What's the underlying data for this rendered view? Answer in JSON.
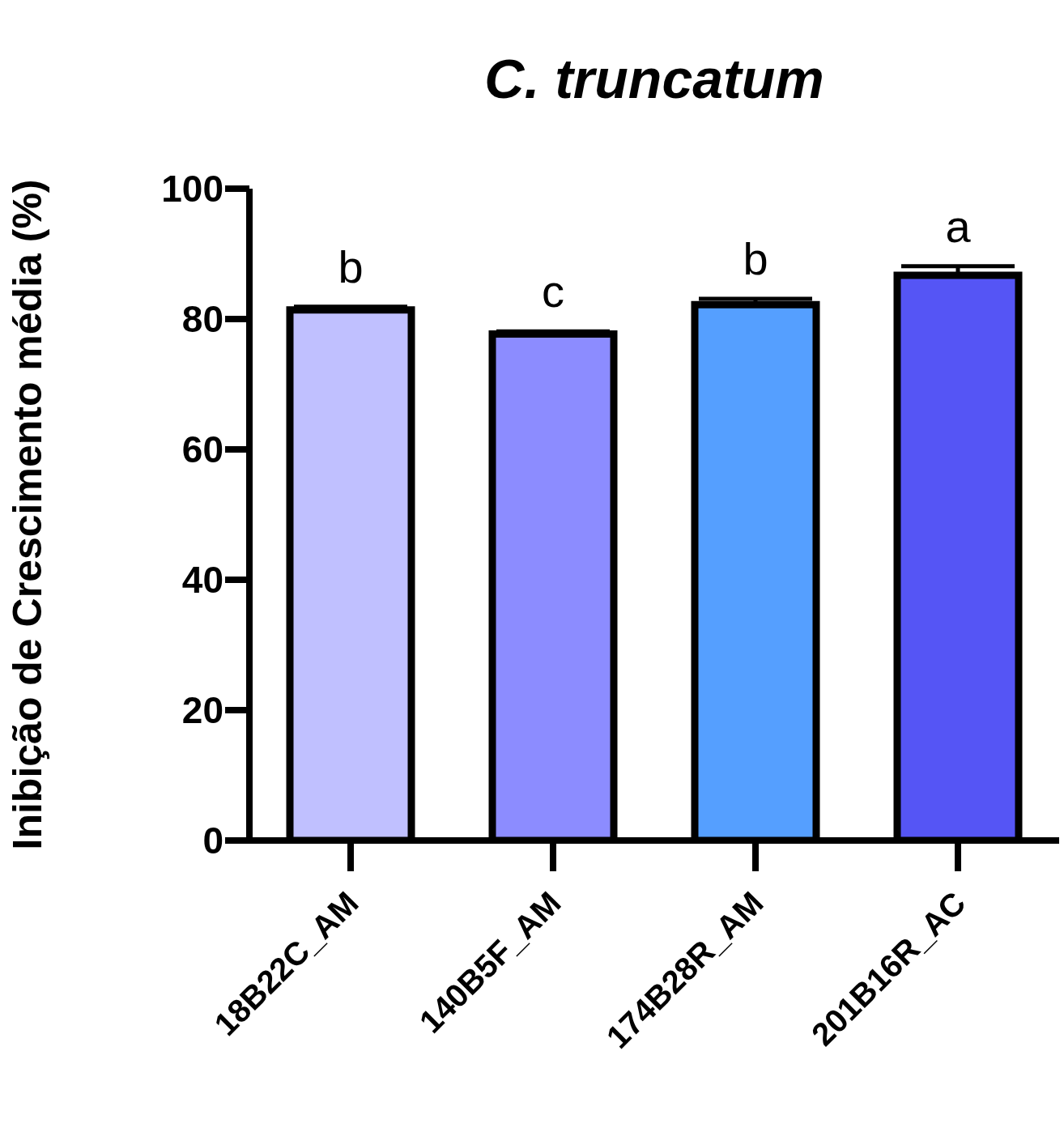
{
  "chart_data": {
    "type": "bar",
    "title": "C. truncatum",
    "ylabel": "Inibição de Crescimento média (%)",
    "categories": [
      "18B22C_AM",
      "140B5F_AM",
      "174B28R_AM",
      "201B16R_AC"
    ],
    "values": [
      81.4,
      77.7,
      82.2,
      86.7
    ],
    "errors": [
      [
        81.4,
        81.9
      ],
      [
        77.7,
        78.1
      ],
      [
        82.2,
        83.1
      ],
      [
        86.7,
        88.1
      ]
    ],
    "colors": [
      "#c0c0ff",
      "#8c8cff",
      "#559fff",
      "#5555f5"
    ],
    "ylim": [
      0,
      100
    ],
    "yticks": [
      0,
      20,
      40,
      60,
      80,
      100
    ],
    "grid": false,
    "legend": false,
    "annotations": [
      "b",
      "c",
      "b",
      "a"
    ]
  }
}
